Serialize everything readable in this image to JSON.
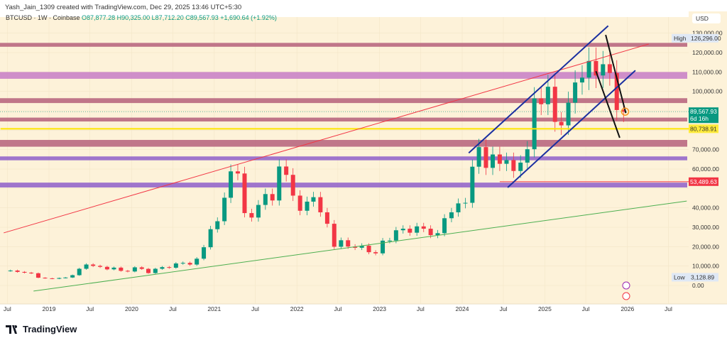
{
  "header": {
    "credit": "Yash_Jain_1309 created with TradingView.com, Dec 29, 2025 13:46 UTC+5:30",
    "symbol": "BTCUSD · 1W · Coinbase",
    "open": "O87,877.28",
    "high": "H90,325.00",
    "low": "L87,712.20",
    "close": "C89,567.93",
    "change": "+1,690.64 (+1.92%)"
  },
  "footer": {
    "brand": "TradingView"
  },
  "chart_data": {
    "type": "candlestick",
    "currency": "USD",
    "ylim": [
      -3000,
      135000
    ],
    "y_ticks": [
      0,
      10000,
      20000,
      30000,
      40000,
      50000,
      60000,
      70000,
      80000,
      90000,
      100000,
      110000,
      120000,
      130000
    ],
    "y_tick_labels": [
      "0.00",
      "10,000.00",
      "20,000.00",
      "30,000.00",
      "40,000.00",
      "",
      "60,000.00",
      "70,000.00",
      "",
      "",
      "100,000.00",
      "110,000.00",
      "120,000.00",
      "130,000.00"
    ],
    "x_ticks": [
      {
        "date": "2018-07-01",
        "label": "Jul"
      },
      {
        "date": "2019-01-01",
        "label": "2019"
      },
      {
        "date": "2019-07-01",
        "label": "Jul"
      },
      {
        "date": "2020-01-01",
        "label": "2020"
      },
      {
        "date": "2020-07-01",
        "label": "Jul"
      },
      {
        "date": "2021-01-01",
        "label": "2021"
      },
      {
        "date": "2021-07-01",
        "label": "Jul"
      },
      {
        "date": "2022-01-01",
        "label": "2022"
      },
      {
        "date": "2022-07-01",
        "label": "Jul"
      },
      {
        "date": "2023-01-01",
        "label": "2023"
      },
      {
        "date": "2023-07-01",
        "label": "Jul"
      },
      {
        "date": "2024-01-01",
        "label": "2024"
      },
      {
        "date": "2024-07-01",
        "label": "Jul"
      },
      {
        "date": "2025-01-01",
        "label": "2025"
      },
      {
        "date": "2025-07-01",
        "label": "Jul"
      },
      {
        "date": "2026-01-01",
        "label": "2026"
      },
      {
        "date": "2026-07-01",
        "label": "Jul"
      }
    ],
    "start": "2018-07-01",
    "monthly_closes": [
      7700,
      7000,
      6600,
      6300,
      4000,
      3700,
      3450,
      3850,
      4100,
      5300,
      8600,
      10800,
      10100,
      9600,
      8300,
      9200,
      7550,
      7200,
      9350,
      8550,
      6400,
      8600,
      9450,
      9150,
      11350,
      11650,
      10780,
      13800,
      19700,
      29000,
      33100,
      45200,
      58800,
      57700,
      37300,
      35000,
      41500,
      47100,
      43800,
      61300,
      57000,
      46300,
      38500,
      43200,
      45500,
      37700,
      31800,
      19950,
      23300,
      20050,
      19430,
      20500,
      17150,
      16550,
      23100,
      23150,
      28450,
      29250,
      27200,
      30450,
      29250,
      25950,
      26950,
      34650,
      37700,
      42300,
      42600,
      61200,
      71300,
      60600,
      67500,
      62700,
      64600,
      59000,
      63300,
      70200,
      96400,
      93400,
      102400,
      84300,
      82500,
      94200,
      104600,
      107100,
      115700,
      108200,
      114000,
      109500,
      90400,
      89567.93
    ],
    "price_labels": [
      {
        "name": "high",
        "label": "High",
        "value": 126296,
        "text": "126,296.00"
      },
      {
        "name": "low",
        "label": "Low",
        "value": 3128.89,
        "text": "3,128.89"
      },
      {
        "name": "last",
        "value": 89567.93,
        "text": "89,567.93",
        "sub": "6d 16h",
        "color": "#089981"
      },
      {
        "name": "yellow-level",
        "value": 80738.91,
        "text": "80,738.91",
        "color": "#ffeb3b"
      },
      {
        "name": "red-level",
        "value": 53489.63,
        "text": "53,489.63",
        "color": "#f23645"
      }
    ],
    "zones": [
      {
        "from": 123000,
        "to": 125000,
        "color": "#b5607a"
      },
      {
        "from": 106500,
        "to": 110000,
        "color": "#c77dc6"
      },
      {
        "from": 94000,
        "to": 96500,
        "color": "#b5607a"
      },
      {
        "from": 84500,
        "to": 86500,
        "color": "#b5607a"
      },
      {
        "from": 71500,
        "to": 75000,
        "color": "#b5607a"
      },
      {
        "from": 64500,
        "to": 66500,
        "color": "#8e5fc9"
      },
      {
        "from": 50500,
        "to": 53000,
        "color": "#8e5fc9"
      }
    ],
    "lines": [
      {
        "name": "yellow-level-line",
        "from": [
          "2018-06-01",
          80738.91
        ],
        "to": [
          "2026-10-01",
          80738.91
        ],
        "color": "#ffe500",
        "w": 2
      },
      {
        "name": "red-level-line",
        "from": [
          "2024-06-15",
          53489.63
        ],
        "to": [
          "2026-10-01",
          53489.63
        ],
        "color": "#f23645",
        "w": 1
      },
      {
        "name": "red-trendline",
        "from": [
          "2018-06-15",
          27100
        ],
        "to": [
          "2026-04-05",
          124400
        ],
        "color": "#f23645",
        "w": 1
      },
      {
        "name": "green-trendline",
        "from": [
          "2018-10-25",
          -2900
        ],
        "to": [
          "2026-09-20",
          43500
        ],
        "color": "#4caf50",
        "w": 1
      },
      {
        "name": "blue-channel-upper",
        "from": [
          "2024-01-30",
          68300
        ],
        "to": [
          "2025-10-08",
          133800
        ],
        "color": "#1a2fa0",
        "w": 2
      },
      {
        "name": "blue-channel-lower",
        "from": [
          "2024-07-20",
          50500
        ],
        "to": [
          "2026-02-05",
          110800
        ],
        "color": "#1a2fa0",
        "w": 2
      },
      {
        "name": "black-line-1",
        "from": [
          "2025-09-27",
          129100
        ],
        "to": [
          "2025-12-25",
          88800
        ],
        "color": "#111",
        "w": 2
      },
      {
        "name": "black-line-2",
        "from": [
          "2025-08-15",
          110400
        ],
        "to": [
          "2025-11-28",
          76100
        ],
        "color": "#111",
        "w": 2
      }
    ],
    "colors": {
      "up": "#089981",
      "down": "#f23645",
      "background": "#fdf2d9"
    }
  }
}
